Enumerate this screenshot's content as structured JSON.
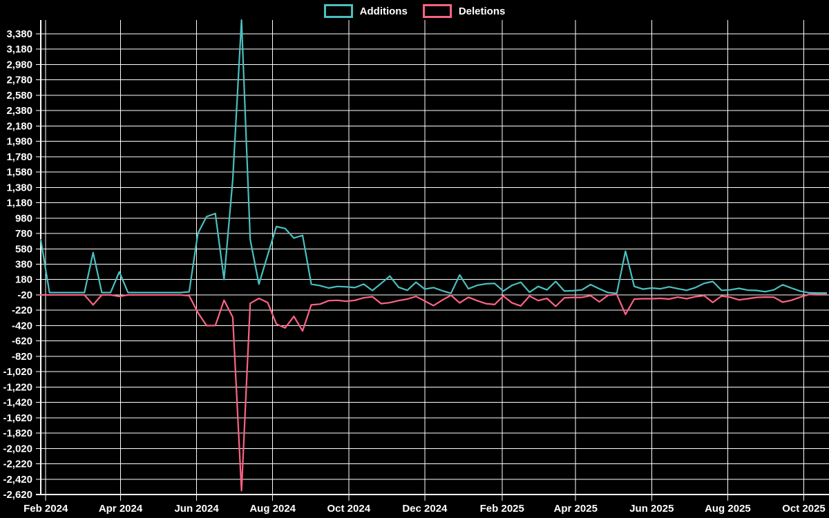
{
  "chart_data": {
    "type": "line",
    "title": "",
    "grid": true,
    "legend_position": "top",
    "x_unit": "week",
    "ylim": [
      -2620,
      3560
    ],
    "y_axis": {
      "min": -2620,
      "max": 3380,
      "step": 200
    },
    "x_axis": {
      "ticks": [
        {
          "label": "Feb 2024",
          "week": 0.571
        },
        {
          "label": "Apr 2024",
          "week": 9.143
        },
        {
          "label": "Jun 2024",
          "week": 17.857
        },
        {
          "label": "Aug 2024",
          "week": 26.571
        },
        {
          "label": "Oct 2024",
          "week": 35.286
        },
        {
          "label": "Dec 2024",
          "week": 44.0
        },
        {
          "label": "Feb 2025",
          "week": 52.857
        },
        {
          "label": "Apr 2025",
          "week": 61.286
        },
        {
          "label": "Jun 2025",
          "week": 70.0
        },
        {
          "label": "Aug 2025",
          "week": 78.714
        },
        {
          "label": "Oct 2025",
          "week": 87.429
        }
      ]
    },
    "series": [
      {
        "name": "Additions",
        "color": "#4bc0c0",
        "values": [
          700,
          10,
          10,
          10,
          10,
          10,
          530,
          10,
          10,
          280,
          10,
          10,
          10,
          10,
          10,
          10,
          10,
          20,
          780,
          1000,
          1040,
          180,
          1480,
          3560,
          700,
          120,
          500,
          870,
          845,
          720,
          755,
          120,
          100,
          70,
          90,
          85,
          75,
          120,
          37,
          130,
          225,
          80,
          40,
          145,
          55,
          75,
          35,
          0,
          240,
          60,
          105,
          125,
          130,
          30,
          105,
          145,
          15,
          90,
          45,
          155,
          30,
          35,
          45,
          115,
          60,
          10,
          0,
          550,
          90,
          55,
          70,
          60,
          85,
          62,
          40,
          75,
          130,
          155,
          40,
          45,
          65,
          42,
          38,
          22,
          45,
          112,
          70,
          30,
          8,
          5,
          5
        ]
      },
      {
        "name": "Deletions",
        "color": "#ff6384",
        "values": [
          -20,
          -20,
          -20,
          -20,
          -20,
          -20,
          -150,
          -20,
          -20,
          -40,
          -20,
          -20,
          -20,
          -20,
          -20,
          -20,
          -20,
          -30,
          -250,
          -420,
          -420,
          -90,
          -310,
          -2570,
          -130,
          -65,
          -120,
          -400,
          -450,
          -300,
          -490,
          -150,
          -140,
          -95,
          -90,
          -103,
          -90,
          -58,
          -44,
          -134,
          -121,
          -94,
          -74,
          -40,
          -100,
          -160,
          -89,
          -25,
          -125,
          -50,
          -95,
          -134,
          -145,
          -35,
          -125,
          -163,
          -35,
          -94,
          -65,
          -169,
          -58,
          -53,
          -53,
          -30,
          -110,
          -25,
          -13,
          -274,
          -74,
          -70,
          -70,
          -65,
          -74,
          -49,
          -70,
          -44,
          -29,
          -118,
          -35,
          -50,
          -85,
          -70,
          -53,
          -48,
          -50,
          -115,
          -90,
          -50,
          -15,
          -10,
          -10
        ]
      }
    ]
  }
}
